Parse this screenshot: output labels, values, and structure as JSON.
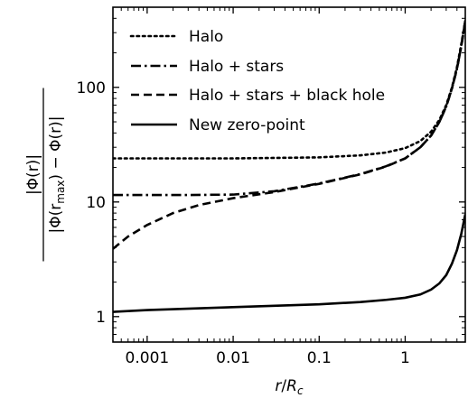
{
  "chart_data": {
    "type": "line",
    "xlabel": {
      "main": "r",
      "sep": "/",
      "sym": "R",
      "sub": "c"
    },
    "ylabel": {
      "num": "|Φ(r)|",
      "den_pre": "|Φ(r",
      "den_sub": "max",
      "den_post": ") − Φ(r)|"
    },
    "xscale": "log",
    "yscale": "log",
    "xlim": [
      0.0004,
      5.0
    ],
    "ylim": [
      0.6,
      500
    ],
    "xticks": [
      {
        "value": 0.001,
        "label": "0.001"
      },
      {
        "value": 0.01,
        "label": "0.01"
      },
      {
        "value": 0.1,
        "label": "0.1"
      },
      {
        "value": 1,
        "label": "1"
      }
    ],
    "yticks": [
      {
        "value": 1,
        "label": "1"
      },
      {
        "value": 10,
        "label": "10"
      },
      {
        "value": 100,
        "label": "100"
      }
    ],
    "grid": false,
    "legend_position": "upper-left",
    "series": [
      {
        "name": "Halo",
        "style": "dotted",
        "x": [
          0.0004,
          0.001,
          0.01,
          0.1,
          0.3,
          0.6,
          1.0,
          1.5,
          2.0,
          2.5,
          3.0,
          3.5,
          4.0,
          4.5,
          5.0
        ],
        "y": [
          24,
          24,
          24,
          24.5,
          25.5,
          27,
          29.5,
          34,
          41,
          52,
          70,
          100,
          150,
          240,
          380
        ]
      },
      {
        "name": "Halo + stars",
        "style": "dashdot",
        "x": [
          0.0004,
          0.001,
          0.003,
          0.01,
          0.03,
          0.1,
          0.3,
          0.6,
          1.0,
          1.5,
          2.0,
          2.5,
          3.0,
          3.5,
          4.0,
          4.5,
          5.0
        ],
        "y": [
          11.5,
          11.5,
          11.5,
          11.6,
          12.4,
          14.5,
          17.5,
          20.5,
          24,
          30,
          38,
          50,
          68,
          98,
          145,
          230,
          380
        ]
      },
      {
        "name": "Halo + stars + black hole",
        "style": "dashed",
        "x": [
          0.0004,
          0.0006,
          0.001,
          0.002,
          0.004,
          0.01,
          0.03,
          0.1,
          0.3,
          0.6,
          1.0,
          1.5,
          2.0,
          2.5,
          3.0,
          3.5,
          4.0,
          4.5,
          5.0
        ],
        "y": [
          3.9,
          5.0,
          6.3,
          8.0,
          9.4,
          10.8,
          12.2,
          14.4,
          17.4,
          20.4,
          24,
          30,
          38,
          50,
          68,
          98,
          145,
          230,
          380
        ]
      },
      {
        "name": "New zero-point",
        "style": "solid",
        "x": [
          0.0004,
          0.001,
          0.01,
          0.1,
          0.3,
          0.6,
          1.0,
          1.5,
          2.0,
          2.5,
          3.0,
          3.5,
          4.0,
          4.5,
          5.0
        ],
        "y": [
          1.1,
          1.14,
          1.21,
          1.28,
          1.34,
          1.4,
          1.46,
          1.56,
          1.72,
          1.95,
          2.3,
          2.9,
          3.8,
          5.3,
          7.8
        ]
      }
    ]
  }
}
